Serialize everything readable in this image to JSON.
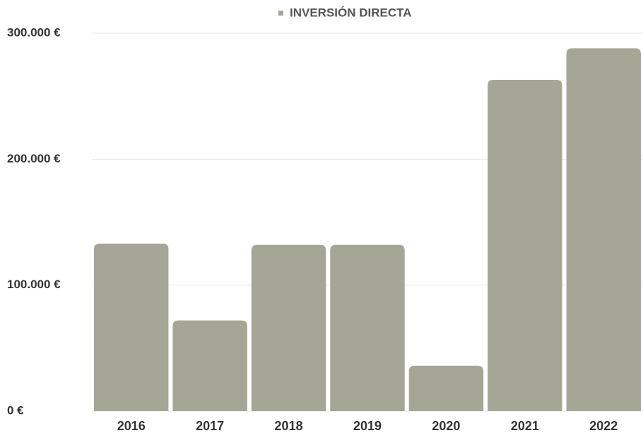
{
  "chart_data": {
    "type": "bar",
    "categories": [
      "2016",
      "2017",
      "2018",
      "2019",
      "2020",
      "2021",
      "2022"
    ],
    "series": [
      {
        "name": "INVERSIÓN DIRECTA",
        "color": "#a5a696",
        "values": [
          133000,
          72000,
          132000,
          132000,
          36000,
          263000,
          288000
        ]
      }
    ],
    "ylim": [
      0,
      300000
    ],
    "yticks": [
      {
        "value": 0,
        "label": "0 €"
      },
      {
        "value": 100000,
        "label": "100.000 €"
      },
      {
        "value": 200000,
        "label": "200.000 €"
      },
      {
        "value": 300000,
        "label": "300.000 €"
      }
    ],
    "grid": true,
    "legend": "top"
  }
}
